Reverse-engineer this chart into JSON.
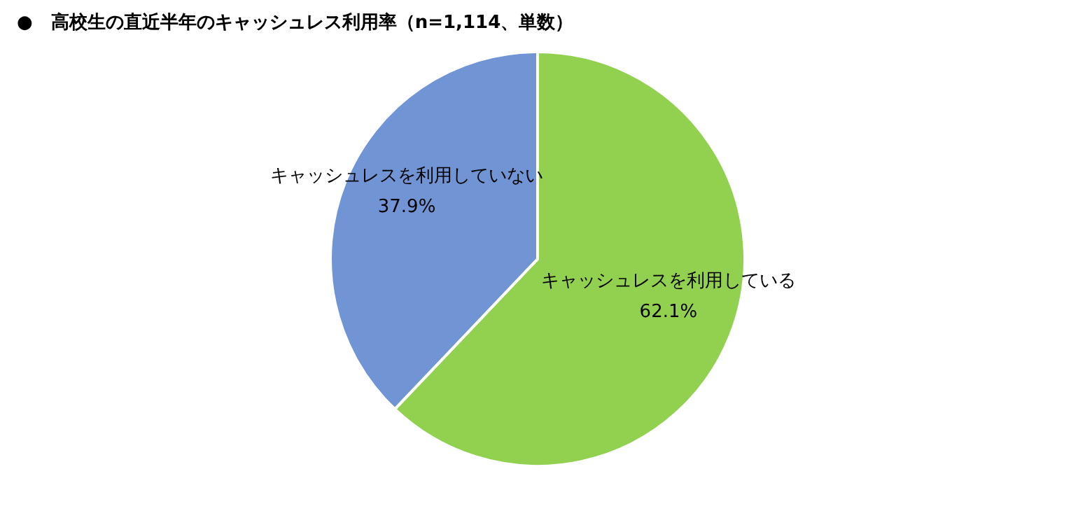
{
  "chart_data": {
    "type": "pie",
    "title": "●　高校生の直近半年のキャッシュレス利用率（n=1,114、単数）",
    "categories": [
      "キャッシュレスを利用している",
      "キャッシュレスを利用していない"
    ],
    "values": [
      62.1,
      37.9
    ],
    "colors": [
      "#92d050",
      "#7094d4"
    ],
    "value_labels": [
      "62.1%",
      "37.9%"
    ]
  }
}
